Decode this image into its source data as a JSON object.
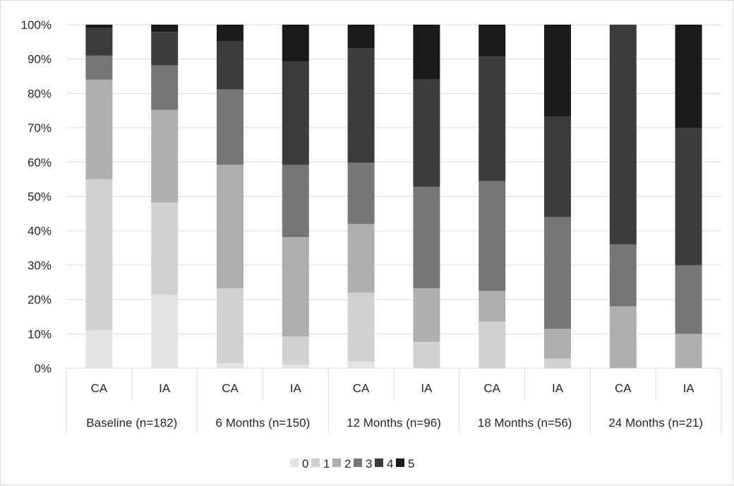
{
  "chart_data": {
    "type": "bar",
    "stacked": true,
    "percent": true,
    "title": "",
    "xlabel": "",
    "ylabel": "",
    "ylim": [
      0,
      100
    ],
    "y_ticks": [
      "0%",
      "10%",
      "20%",
      "30%",
      "40%",
      "50%",
      "60%",
      "70%",
      "80%",
      "90%",
      "100%"
    ],
    "grid": true,
    "legend_position": "bottom",
    "groups": [
      {
        "label": "Baseline (n=182)",
        "categories": [
          "CA",
          "IA"
        ]
      },
      {
        "label": "6 Months (n=150)",
        "categories": [
          "CA",
          "IA"
        ]
      },
      {
        "label": "12 Months (n=96)",
        "categories": [
          "CA",
          "IA"
        ]
      },
      {
        "label": "18 Months (n=56)",
        "categories": [
          "CA",
          "IA"
        ]
      },
      {
        "label": "24 Months (n=21)",
        "categories": [
          "CA",
          "IA"
        ]
      }
    ],
    "categories": [
      "CA",
      "IA",
      "CA",
      "IA",
      "CA",
      "IA",
      "CA",
      "IA",
      "CA",
      "IA"
    ],
    "series": [
      {
        "name": "0",
        "color": "#e4e4e4",
        "values": [
          11,
          21.4,
          1.4,
          1,
          2,
          0,
          0,
          0,
          0,
          0
        ]
      },
      {
        "name": "1",
        "color": "#d1d1d1",
        "values": [
          44,
          26.8,
          21.9,
          8.2,
          20,
          7.7,
          13.5,
          2.8,
          0,
          0
        ]
      },
      {
        "name": "2",
        "color": "#afafaf",
        "values": [
          29,
          27,
          35.9,
          29,
          20,
          15.6,
          9,
          8.7,
          18,
          10
        ]
      },
      {
        "name": "3",
        "color": "#767676",
        "values": [
          7,
          13,
          22,
          21,
          17.8,
          29.5,
          32,
          32.5,
          18,
          20
        ]
      },
      {
        "name": "4",
        "color": "#3c3c3c",
        "values": [
          8,
          9.7,
          14,
          30.1,
          33.4,
          31.3,
          36.2,
          29.3,
          64,
          40
        ]
      },
      {
        "name": "5",
        "color": "#1a1a1a",
        "values": [
          1,
          2.1,
          4.8,
          10.7,
          6.8,
          15.9,
          9.3,
          26.7,
          0,
          30
        ]
      }
    ]
  }
}
